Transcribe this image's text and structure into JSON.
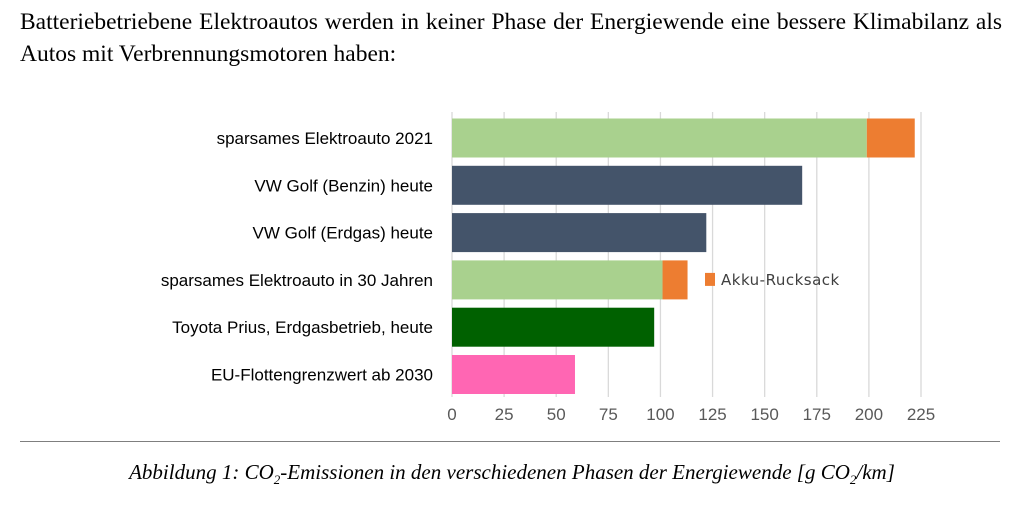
{
  "intro": "Batteriebetriebene Elektroautos werden in keiner Phase der Energiewende eine bessere Klimabilanz als Autos mit Verbrennungsmotoren haben:",
  "chart_data": {
    "type": "bar",
    "orientation": "horizontal",
    "stacked": true,
    "categories": [
      "sparsames Elektroauto 2021",
      "VW Golf (Benzin) heute",
      "VW Golf (Erdgas) heute",
      "sparsames Elektroauto in 30 Jahren",
      "Toyota Prius, Erdgasbetrieb, heute",
      "EU-Flottengrenzwert ab 2030"
    ],
    "values": [
      199,
      168,
      122,
      101,
      97,
      59
    ],
    "bar_colors": [
      "#a9d18e",
      "#44546a",
      "#44546a",
      "#a9d18e",
      "#006100",
      "#ff66b3"
    ],
    "series": [
      {
        "name": "Akku-Rucksack",
        "values": [
          23,
          0,
          0,
          12,
          0,
          0
        ],
        "color": "#ed7d31"
      }
    ],
    "legend": {
      "label": "Akku-Rucksack",
      "placement": "inside-right"
    },
    "xticks": [
      0,
      25,
      50,
      75,
      100,
      125,
      150,
      175,
      200,
      225
    ],
    "xlim": [
      0,
      225
    ],
    "grid": true,
    "xlabel": "",
    "ylabel": ""
  },
  "caption": {
    "prefix": "Abbildung 1: CO",
    "sub1": "2",
    "middle": "-Emissionen in den verschiedenen Phasen der Energiewende [g CO",
    "sub2": "2",
    "suffix": "/km]"
  }
}
